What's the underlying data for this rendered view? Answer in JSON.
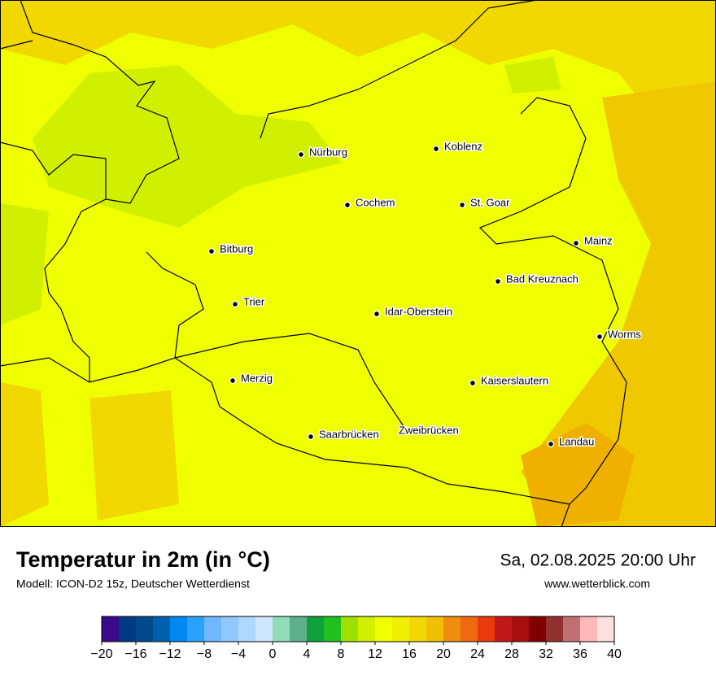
{
  "header": {
    "title": "Temperatur in 2m (in °C)",
    "subtitle": "Modell: ICON-D2 15z, Deutscher Wetterdienst",
    "date": "Sa, 02.08.2025 20:00 Uhr",
    "website": "www.wetterblick.com"
  },
  "cities": [
    "Nürburg",
    "Koblenz",
    "Cochem",
    "St. Goar",
    "Mainz",
    "Bitburg",
    "Bad Kreuznach",
    "Trier",
    "Idar-Oberstein",
    "Worms",
    "Merzig",
    "Kaiserslautern",
    "Saarbrücken",
    "Zweibrücken",
    "Landau"
  ],
  "colorbar": {
    "colors": [
      "#3a0a8c",
      "#003a80",
      "#004a8c",
      "#0060b0",
      "#0088f0",
      "#2aa0ff",
      "#70b8ff",
      "#90c8ff",
      "#b0d8ff",
      "#d0e6fc",
      "#90dcb8",
      "#5eb08a",
      "#10a040",
      "#20c020",
      "#a0e000",
      "#d0f000",
      "#f0ff00",
      "#f0f000",
      "#f0d800",
      "#f0c000",
      "#f08c10",
      "#f06810",
      "#e83a0a",
      "#c01818",
      "#a81010",
      "#800000",
      "#903030",
      "#c07070",
      "#ffb8b8",
      "#ffe0e0"
    ],
    "ticks": [
      {
        "value": -20,
        "label": "−20"
      },
      {
        "value": -16,
        "label": "−16"
      },
      {
        "value": -12,
        "label": "−12"
      },
      {
        "value": -8,
        "label": "−8"
      },
      {
        "value": -4,
        "label": "−4"
      },
      0,
      4,
      8,
      12,
      16,
      20,
      24,
      28,
      32,
      36,
      40
    ]
  }
}
